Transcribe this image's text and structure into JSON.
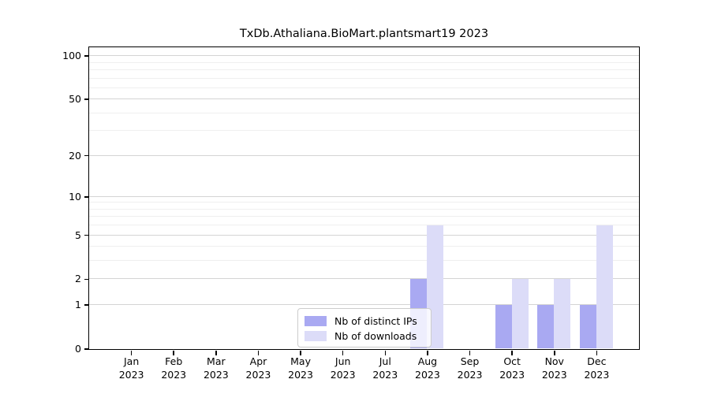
{
  "chart_data": {
    "type": "bar",
    "title": "TxDb.Athaliana.BioMart.plantsmart19 2023",
    "categories": [
      "Jan",
      "Feb",
      "Mar",
      "Apr",
      "May",
      "Jun",
      "Jul",
      "Aug",
      "Sep",
      "Oct",
      "Nov",
      "Dec"
    ],
    "category_year": "2023",
    "series": [
      {
        "name": "Nb of distinct IPs",
        "color": "#a9a9f2",
        "values": [
          0,
          0,
          0,
          0,
          0,
          0,
          0,
          2,
          0,
          1,
          1,
          1
        ]
      },
      {
        "name": "Nb of downloads",
        "color": "#dcdcf8",
        "values": [
          0,
          0,
          0,
          0,
          0,
          0,
          0,
          6,
          0,
          2,
          2,
          6
        ]
      }
    ],
    "y_axis": {
      "scale": "log1p",
      "ticks": [
        0,
        1,
        2,
        5,
        10,
        20,
        50,
        100
      ],
      "minor_gridlines": [
        3,
        4,
        6,
        7,
        8,
        9,
        30,
        40,
        60,
        70,
        80,
        90
      ],
      "max": 115
    },
    "legend": {
      "position": "bottom-center"
    },
    "grid": true,
    "colors": {
      "major_grid": "#d4d4d4",
      "minor_grid": "#efefef",
      "axis": "#000000",
      "background": "#ffffff"
    }
  }
}
